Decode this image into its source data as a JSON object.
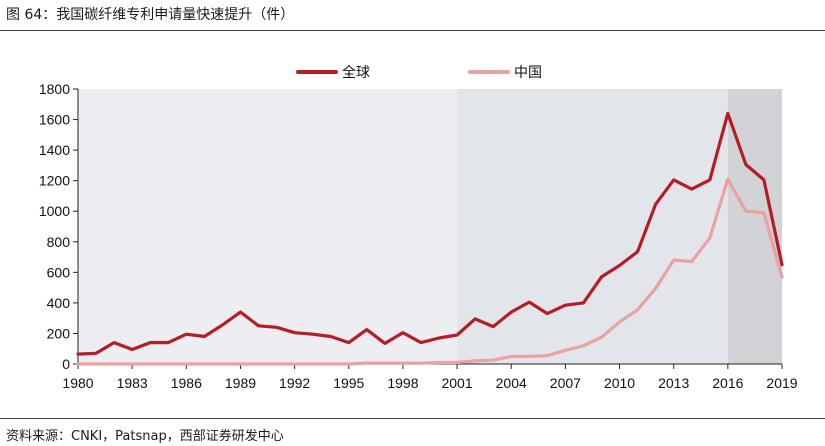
{
  "header": {
    "title": "图 64：我国碳纤维专利申请量快速提升（件）"
  },
  "footer": {
    "source": "资料来源：CNKI，Patsnap，西部证券研发中心"
  },
  "colors": {
    "global": "#b71c24",
    "china": "#e9a1a2",
    "region_mid": "#e2e5ea",
    "region_left": "#eceef2",
    "region_right": "#d2d3d7"
  },
  "chart_data": {
    "type": "line",
    "title": "",
    "xlabel": "",
    "ylabel": "",
    "ylim": [
      0,
      1800
    ],
    "xlim": [
      1980,
      2019
    ],
    "yticks": [
      0,
      200,
      400,
      600,
      800,
      1000,
      1200,
      1400,
      1600,
      1800
    ],
    "xticks": [
      1980,
      1983,
      1986,
      1989,
      1992,
      1995,
      1998,
      2001,
      2004,
      2007,
      2010,
      2013,
      2016,
      2019
    ],
    "legend_position": "top-center",
    "shaded_periods": [
      {
        "from": 1980,
        "to": 2001,
        "shade": "region_left"
      },
      {
        "from": 2001,
        "to": 2016,
        "shade": "region_mid"
      },
      {
        "from": 2016,
        "to": 2019,
        "shade": "region_right"
      }
    ],
    "x": [
      1980,
      1981,
      1982,
      1983,
      1984,
      1985,
      1986,
      1987,
      1988,
      1989,
      1990,
      1991,
      1992,
      1993,
      1994,
      1995,
      1996,
      1997,
      1998,
      1999,
      2000,
      2001,
      2002,
      2003,
      2004,
      2005,
      2006,
      2007,
      2008,
      2009,
      2010,
      2011,
      2012,
      2013,
      2014,
      2015,
      2016,
      2017,
      2018,
      2019
    ],
    "series": [
      {
        "name": "全球",
        "color_key": "global",
        "values": [
          65,
          70,
          140,
          95,
          140,
          140,
          195,
          180,
          255,
          340,
          250,
          240,
          205,
          195,
          180,
          140,
          225,
          135,
          205,
          140,
          170,
          190,
          295,
          245,
          340,
          405,
          330,
          385,
          400,
          570,
          645,
          735,
          1045,
          1205,
          1145,
          1205,
          1640,
          1305,
          1205,
          650
        ]
      },
      {
        "name": "中国",
        "color_key": "china",
        "values": [
          0,
          0,
          0,
          0,
          0,
          0,
          0,
          0,
          0,
          0,
          0,
          0,
          0,
          0,
          0,
          0,
          5,
          5,
          5,
          5,
          10,
          10,
          20,
          25,
          50,
          50,
          55,
          90,
          120,
          175,
          275,
          355,
          495,
          680,
          670,
          825,
          1210,
          1000,
          990,
          570
        ]
      }
    ]
  }
}
